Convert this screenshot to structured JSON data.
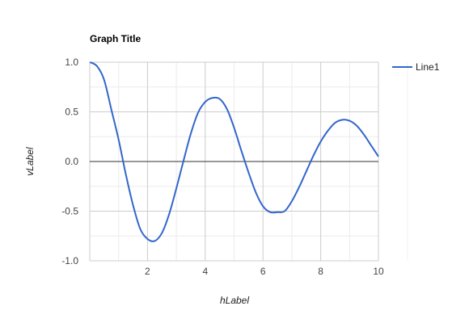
{
  "chart_data": {
    "type": "line",
    "title": "Graph Title",
    "xlabel": "hLabel",
    "ylabel": "vLabel",
    "xlim": [
      0,
      10
    ],
    "ylim": [
      -1.0,
      1.0
    ],
    "x_ticks": [
      2,
      4,
      6,
      8,
      10
    ],
    "x_tick_labels": [
      "2",
      "4",
      "6",
      "8",
      "10"
    ],
    "y_ticks": [
      -1.0,
      -0.5,
      0.0,
      0.5,
      1.0
    ],
    "y_tick_labels": [
      "-1.0",
      "-0.5",
      "0.0",
      "0.5",
      "1.0"
    ],
    "grid": true,
    "legend_position": "right",
    "series": [
      {
        "name": "Line1",
        "color": "#3366cc",
        "x": [
          0,
          0.25,
          0.5,
          0.75,
          1.0,
          1.25,
          1.5,
          1.75,
          2.0,
          2.25,
          2.5,
          2.75,
          3.0,
          3.25,
          3.5,
          3.75,
          4.0,
          4.25,
          4.5,
          4.75,
          5.0,
          5.25,
          5.5,
          5.75,
          6.0,
          6.25,
          6.5,
          6.75,
          7.0,
          7.25,
          7.5,
          7.75,
          8.0,
          8.25,
          8.5,
          8.75,
          9.0,
          9.25,
          9.5,
          9.75,
          10.0
        ],
        "values": [
          1.0,
          0.96,
          0.82,
          0.52,
          0.22,
          -0.13,
          -0.44,
          -0.68,
          -0.78,
          -0.8,
          -0.72,
          -0.53,
          -0.27,
          0.01,
          0.28,
          0.49,
          0.6,
          0.64,
          0.63,
          0.53,
          0.34,
          0.11,
          -0.11,
          -0.31,
          -0.45,
          -0.51,
          -0.51,
          -0.5,
          -0.4,
          -0.26,
          -0.1,
          0.06,
          0.2,
          0.31,
          0.39,
          0.42,
          0.41,
          0.36,
          0.27,
          0.16,
          0.05
        ]
      }
    ]
  }
}
